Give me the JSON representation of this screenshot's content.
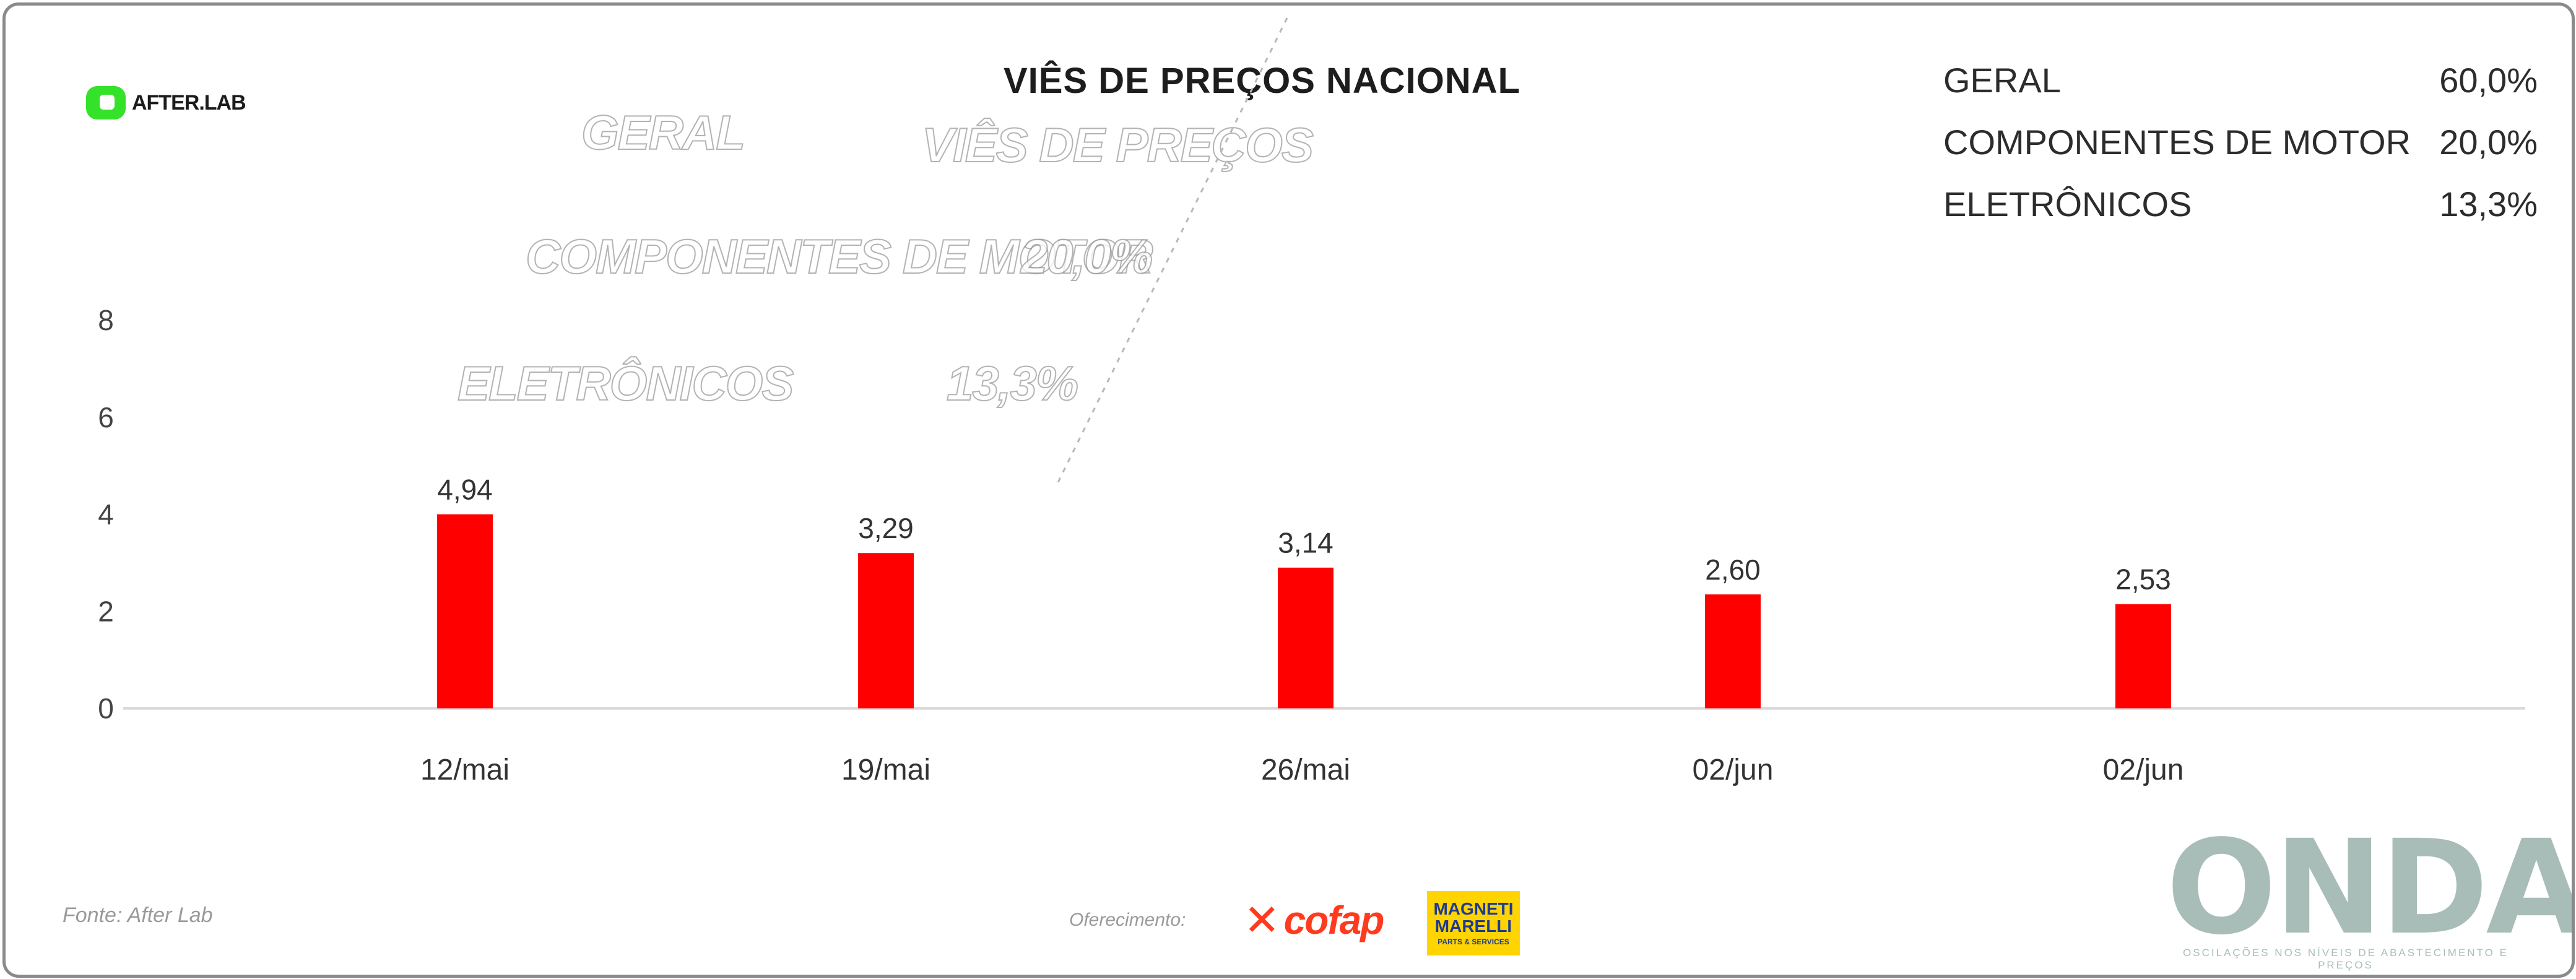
{
  "header": {
    "title": "VIÊS DE PREÇOS NACIONAL",
    "logo_text": "AFTER.LAB"
  },
  "stats": [
    {
      "label": "GERAL",
      "value": "60,0%"
    },
    {
      "label": "COMPONENTES DE MOTOR",
      "value": "20,0%"
    },
    {
      "label": "ELETRÔNICOS",
      "value": "13,3%"
    }
  ],
  "ghost": {
    "geral": "GERAL",
    "title": "VIÊS DE PREÇOS",
    "componentes": "COMPONENTES DE MOTOR",
    "componentes_value": "20,0%",
    "eletronicos": "ELETRÔNICOS",
    "eletronicos_value": "13,3%"
  },
  "footer": {
    "source": "Fonte: After Lab",
    "sponsor": "Oferecimento:",
    "cofap": "cofap",
    "magneti_1": "MAGNETI",
    "magneti_2": "MARELLI",
    "magneti_3": "PARTS & SERVICES",
    "onda": "ONDA",
    "onda_tagline": "OSCILAÇÕES NOS NÍVEIS DE ABASTECIMENTO E PREÇOS"
  },
  "colors": {
    "bar": "#ff0000",
    "accent_green": "#35e22a",
    "onda": "#a9bdb8"
  },
  "chart_data": {
    "type": "bar",
    "categories": [
      "12/mai",
      "19/mai",
      "26/mai",
      "02/jun",
      "02/jun"
    ],
    "values": [
      4.94,
      3.29,
      3.14,
      2.6,
      2.53
    ],
    "bar_heights": [
      4.0,
      3.2,
      2.9,
      2.35,
      2.15
    ],
    "data_labels": [
      "4,94",
      "3,29",
      "3,14",
      "2,60",
      "2,53"
    ],
    "yticks": [
      0,
      2,
      4,
      6,
      8
    ],
    "ylim": [
      0,
      8
    ],
    "grid": false,
    "legend": "none"
  }
}
